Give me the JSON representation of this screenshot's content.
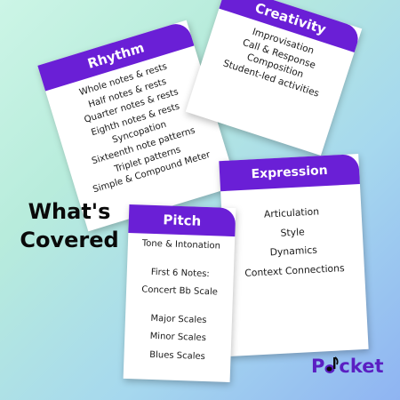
{
  "headline": {
    "line1": "What's",
    "line2": "Covered"
  },
  "cards": {
    "rhythm": {
      "title": "Rhythm",
      "items": [
        "Whole notes & rests",
        "Half notes & rests",
        "Quarter notes & rests",
        "Eighth notes & rests",
        "Syncopation",
        "Sixteenth note patterns",
        "Triplet patterns",
        "Simple & Compound Meter"
      ]
    },
    "creativity": {
      "title": "Creativity",
      "items": [
        "Improvisation",
        "Call & Response",
        "Composition",
        "Student-led activities"
      ]
    },
    "expression": {
      "title": "Expression",
      "items": [
        "Articulation",
        "Style",
        "Dynamics",
        "Context Connections"
      ]
    },
    "pitch": {
      "title": "Pitch",
      "items": [
        "Tone & Intonation",
        "First 6 Notes:",
        "Concert Bb Scale",
        "Major Scales",
        "Minor Scales",
        "Blues Scales"
      ]
    }
  },
  "logo": {
    "text_before": "P",
    "text_after": "cket",
    "icon": "music-note-icon"
  },
  "colors": {
    "header": "#6a1fd6",
    "logo": "#5a1fc2",
    "text": "#0a0a0a"
  }
}
